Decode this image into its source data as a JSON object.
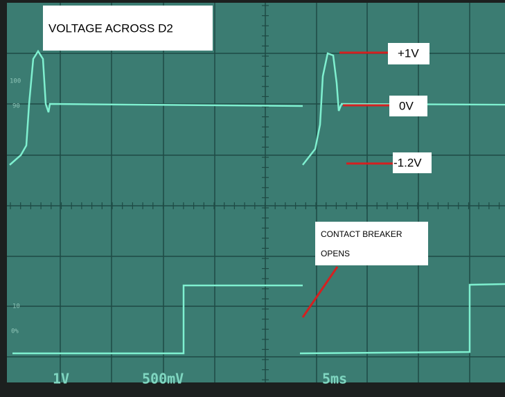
{
  "title": "VOLTAGE ACROSS D2",
  "annotations": {
    "plus_one": "+1V",
    "zero": "0V",
    "minus": "-1.2V",
    "note": [
      "CONTACT BREAKER",
      "OPENS"
    ]
  },
  "graticule_labels": [
    "100",
    "90",
    "10",
    "0%"
  ],
  "readout": {
    "ch1": "1V",
    "ch2": "500mV",
    "time": "5ms"
  }
}
